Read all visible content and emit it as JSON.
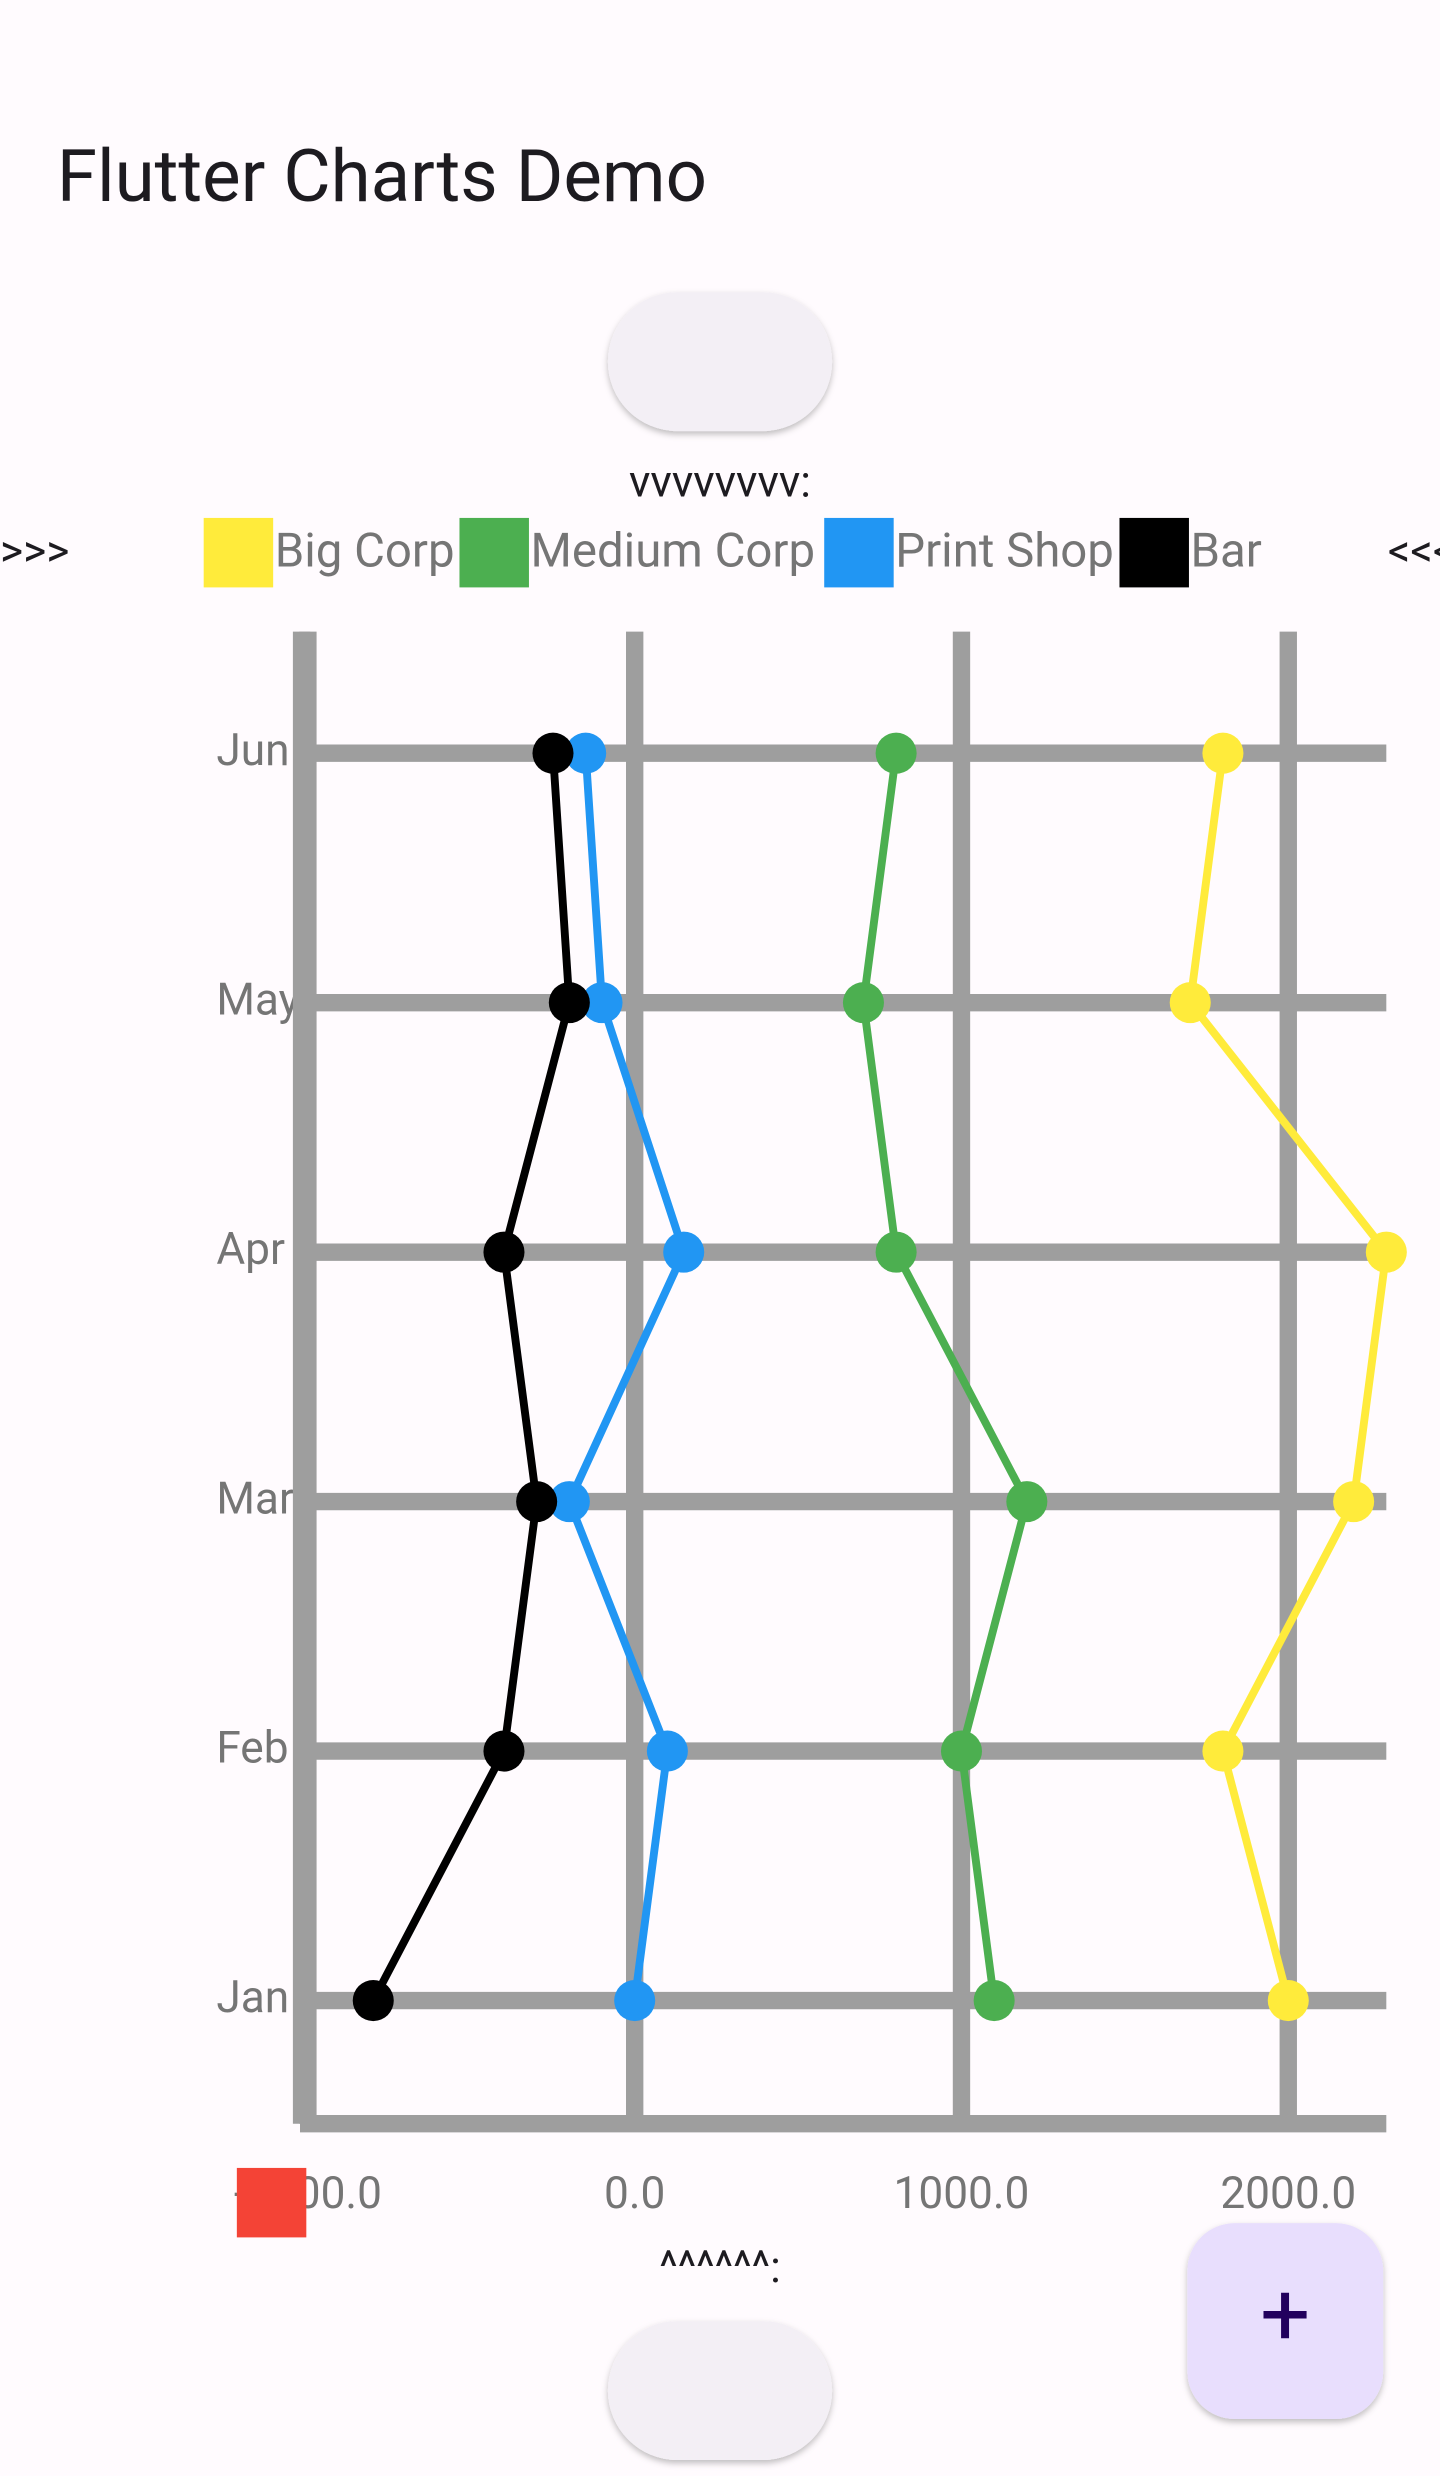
{
  "app": {
    "title": "Flutter Charts Demo",
    "top_label": "vvvvvvvv:",
    "left_marker": ">>>",
    "right_marker": "<<<",
    "bottom_label": "^^^^^^:",
    "fab": "+"
  },
  "chart_data": {
    "type": "line",
    "orientation": "horizontal",
    "categories": [
      "Jan",
      "Feb",
      "Mar",
      "Apr",
      "May",
      "Jun"
    ],
    "series": [
      {
        "name": "Big Corp",
        "color": "#ffeb3b",
        "values": [
          2000,
          1800,
          2200,
          2300,
          1700,
          1800
        ]
      },
      {
        "name": "Medium Corp",
        "color": "#4caf50",
        "values": [
          1100,
          1000,
          1200,
          800,
          700,
          800
        ]
      },
      {
        "name": "Print Shop",
        "color": "#2196f3",
        "values": [
          0,
          100,
          -200,
          150,
          -100,
          -150
        ]
      },
      {
        "name": "Bar",
        "color": "#000000",
        "values": [
          -800,
          -400,
          -300,
          -400,
          -200,
          -250
        ]
      }
    ],
    "xlim": [
      -1000,
      2300
    ],
    "xticks": [
      {
        "value": -1000,
        "label": "-1000.0"
      },
      {
        "value": 0,
        "label": "0.0"
      },
      {
        "value": 1000,
        "label": "1000.0"
      },
      {
        "value": 2000,
        "label": "2000.0"
      }
    ],
    "grid": true
  }
}
